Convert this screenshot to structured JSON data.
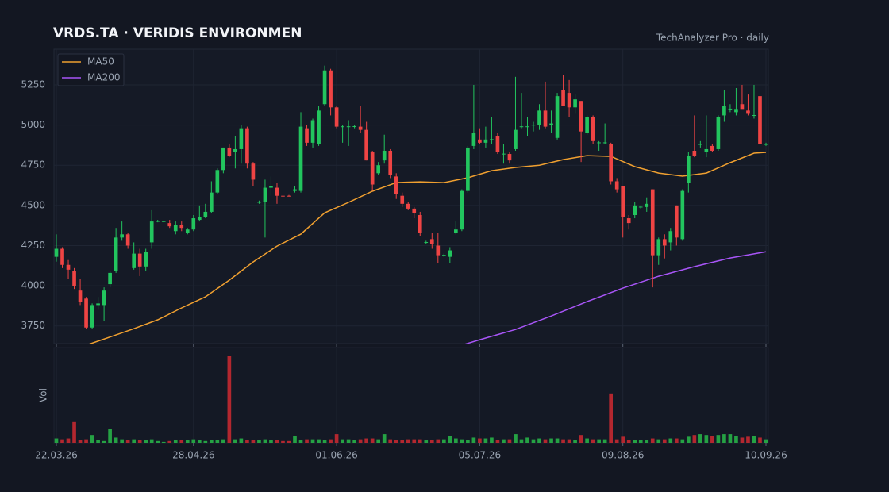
{
  "chart_data": {
    "type": "candlestick",
    "title": "VRDS.TA  ·  VERIDIS ENVIRONMEN",
    "subtitle": "TechAnalyzer Pro · daily",
    "up_color": "#22c55e",
    "down_color": "#ef4444",
    "volume_up_color": "#25a244",
    "volume_down_color": "#b3272f",
    "grid": true,
    "legend": "upper left",
    "xlim": [
      -0.4,
      119.4
    ],
    "xticks": [
      {
        "value": 0,
        "label": "22.03.26"
      },
      {
        "value": 23,
        "label": "28.04.26"
      },
      {
        "value": 47,
        "label": "01.06.26"
      },
      {
        "value": 71,
        "label": "05.07.26"
      },
      {
        "value": 95,
        "label": "09.08.26"
      },
      {
        "value": 119,
        "label": "10.09.26"
      }
    ],
    "ylim": [
      3640,
      5472
    ],
    "yticks": [
      3750,
      4000,
      4250,
      4500,
      4750,
      5000,
      5250
    ],
    "candles": [
      [
        4180,
        4320,
        4150,
        4230
      ],
      [
        4230,
        4240,
        4110,
        4130
      ],
      [
        4130,
        4160,
        4040,
        4100
      ],
      [
        4090,
        4110,
        3980,
        4000
      ],
      [
        3970,
        4040,
        3880,
        3900
      ],
      [
        3920,
        3930,
        3730,
        3740
      ],
      [
        3740,
        3890,
        3730,
        3880
      ],
      [
        3880,
        3930,
        3850,
        3890
      ],
      [
        3880,
        3990,
        3780,
        3970
      ],
      [
        4010,
        4090,
        3990,
        4080
      ],
      [
        4090,
        4360,
        4080,
        4300
      ],
      [
        4300,
        4400,
        4280,
        4320
      ],
      [
        4320,
        4330,
        4230,
        4250
      ],
      [
        4110,
        4270,
        4100,
        4200
      ],
      [
        4200,
        4230,
        4060,
        4120
      ],
      [
        4120,
        4230,
        4090,
        4210
      ],
      [
        4270,
        4470,
        4230,
        4400
      ],
      [
        4400,
        4410,
        4395,
        4403
      ],
      [
        4400,
        4405,
        4395,
        4402
      ],
      [
        4390,
        4410,
        4360,
        4370
      ],
      [
        4340,
        4400,
        4320,
        4380
      ],
      [
        4380,
        4400,
        4340,
        4360
      ],
      [
        4330,
        4360,
        4320,
        4350
      ],
      [
        4350,
        4440,
        4340,
        4420
      ],
      [
        4410,
        4500,
        4400,
        4430
      ],
      [
        4430,
        4510,
        4420,
        4460
      ],
      [
        4460,
        4650,
        4450,
        4580
      ],
      [
        4580,
        4730,
        4570,
        4720
      ],
      [
        4720,
        4860,
        4700,
        4860
      ],
      [
        4860,
        4880,
        4800,
        4810
      ],
      [
        4830,
        4930,
        4730,
        4850
      ],
      [
        4850,
        5000,
        4760,
        4980
      ],
      [
        4980,
        4990,
        4730,
        4760
      ],
      [
        4760,
        4770,
        4620,
        4660
      ],
      [
        4520,
        4530,
        4510,
        4522
      ],
      [
        4520,
        4660,
        4300,
        4610
      ],
      [
        4610,
        4680,
        4560,
        4620
      ],
      [
        4610,
        4640,
        4510,
        4560
      ],
      [
        4560,
        4565,
        4555,
        4558
      ],
      [
        4560,
        4565,
        4555,
        4558
      ],
      [
        4590,
        4620,
        4580,
        4600
      ],
      [
        4590,
        5080,
        4580,
        4990
      ],
      [
        4980,
        5000,
        4870,
        4890
      ],
      [
        4890,
        5040,
        4860,
        5030
      ],
      [
        4880,
        5120,
        4870,
        5090
      ],
      [
        5130,
        5370,
        5120,
        5340
      ],
      [
        5340,
        5350,
        5060,
        5110
      ],
      [
        5110,
        5120,
        4980,
        4990
      ],
      [
        4990,
        5000,
        4890,
        4992
      ],
      [
        4990,
        5030,
        4870,
        4992
      ],
      [
        4990,
        5000,
        4980,
        4993
      ],
      [
        4990,
        5120,
        4950,
        4970
      ],
      [
        4970,
        5020,
        4780,
        4780
      ],
      [
        4830,
        4840,
        4590,
        4630
      ],
      [
        4700,
        4770,
        4690,
        4750
      ],
      [
        4780,
        4940,
        4760,
        4840
      ],
      [
        4840,
        4850,
        4670,
        4690
      ],
      [
        4680,
        4700,
        4540,
        4570
      ],
      [
        4560,
        4580,
        4490,
        4510
      ],
      [
        4510,
        4520,
        4470,
        4480
      ],
      [
        4480,
        4490,
        4420,
        4450
      ],
      [
        4440,
        4460,
        4310,
        4330
      ],
      [
        4270,
        4280,
        4260,
        4272
      ],
      [
        4290,
        4330,
        4230,
        4260
      ],
      [
        4250,
        4330,
        4140,
        4190
      ],
      [
        4190,
        4200,
        4180,
        4192
      ],
      [
        4180,
        4240,
        4140,
        4220
      ],
      [
        4330,
        4400,
        4320,
        4350
      ],
      [
        4350,
        4600,
        4340,
        4590
      ],
      [
        4590,
        4870,
        4580,
        4860
      ],
      [
        4870,
        5250,
        4850,
        4950
      ],
      [
        4910,
        4980,
        4880,
        4890
      ],
      [
        4890,
        4990,
        4860,
        4910
      ],
      [
        4910,
        5050,
        4880,
        4912
      ],
      [
        4930,
        4950,
        4820,
        4830
      ],
      [
        4820,
        4880,
        4760,
        4822
      ],
      [
        4820,
        4830,
        4760,
        4780
      ],
      [
        4850,
        5300,
        4840,
        4970
      ],
      [
        4990,
        5200,
        4980,
        4992
      ],
      [
        4990,
        5050,
        4930,
        4992
      ],
      [
        5000,
        5020,
        4960,
        5002
      ],
      [
        5000,
        5130,
        4970,
        5090
      ],
      [
        5090,
        5270,
        4980,
        4990
      ],
      [
        5000,
        5090,
        4950,
        5010
      ],
      [
        4920,
        5200,
        4910,
        5180
      ],
      [
        5220,
        5310,
        5120,
        5120
      ],
      [
        5200,
        5280,
        5050,
        5110
      ],
      [
        5110,
        5190,
        5070,
        5160
      ],
      [
        5150,
        5150,
        4770,
        4960
      ],
      [
        4950,
        5060,
        4940,
        5050
      ],
      [
        5050,
        5060,
        4880,
        4900
      ],
      [
        4890,
        4900,
        4840,
        4892
      ],
      [
        4890,
        5010,
        4880,
        4892
      ],
      [
        4880,
        4890,
        4630,
        4650
      ],
      [
        4650,
        4670,
        4580,
        4600
      ],
      [
        4620,
        4620,
        4300,
        4430
      ],
      [
        4420,
        4440,
        4350,
        4390
      ],
      [
        4440,
        4520,
        4420,
        4500
      ],
      [
        4490,
        4500,
        4480,
        4492
      ],
      [
        4490,
        4550,
        4460,
        4510
      ],
      [
        4600,
        4600,
        3990,
        4190
      ],
      [
        4190,
        4300,
        4130,
        4290
      ],
      [
        4290,
        4320,
        4170,
        4250
      ],
      [
        4270,
        4360,
        4220,
        4340
      ],
      [
        4500,
        4500,
        4250,
        4300
      ],
      [
        4290,
        4600,
        4280,
        4590
      ],
      [
        4640,
        4830,
        4580,
        4810
      ],
      [
        4840,
        5060,
        4800,
        4810
      ],
      [
        4880,
        4900,
        4860,
        4882
      ],
      [
        4830,
        5060,
        4800,
        4850
      ],
      [
        4870,
        4880,
        4830,
        4840
      ],
      [
        4850,
        5060,
        4840,
        5050
      ],
      [
        5060,
        5220,
        5020,
        5120
      ],
      [
        5100,
        5130,
        5080,
        5102
      ],
      [
        5080,
        5230,
        5060,
        5100
      ],
      [
        5130,
        5250,
        5110,
        5100
      ],
      [
        5090,
        5190,
        5060,
        5070
      ],
      [
        5060,
        5250,
        5040,
        5062
      ],
      [
        5180,
        5190,
        4870,
        4880
      ],
      [
        4880,
        4890,
        4870,
        4882
      ]
    ],
    "volume": {
      "label": "Vol",
      "ylim": [
        0,
        110
      ],
      "values": [
        5,
        4,
        5,
        24,
        3,
        4,
        9,
        3,
        2,
        16,
        6,
        4,
        3,
        4,
        3,
        3,
        4,
        2,
        1,
        2,
        3,
        3,
        3,
        4,
        3,
        2,
        3,
        3,
        4,
        100,
        4,
        5,
        3,
        3,
        3,
        4,
        3,
        3,
        2,
        2,
        8,
        3,
        4,
        4,
        4,
        3,
        4,
        10,
        4,
        4,
        3,
        4,
        5,
        5,
        4,
        10,
        4,
        3,
        3,
        4,
        4,
        4,
        3,
        3,
        4,
        4,
        8,
        5,
        4,
        3,
        6,
        5,
        5,
        6,
        3,
        4,
        4,
        10,
        4,
        6,
        4,
        5,
        4,
        5,
        5,
        4,
        4,
        3,
        9,
        5,
        4,
        4,
        4,
        57,
        4,
        7,
        3,
        3,
        3,
        3,
        5,
        4,
        4,
        5,
        5,
        4,
        7,
        9,
        10,
        9,
        8,
        9,
        10,
        10,
        8,
        6,
        7,
        8,
        6,
        4
      ]
    },
    "lines": [
      {
        "name": "MA50",
        "color": "#f0a030",
        "x": [
          5,
          10,
          13,
          17,
          21,
          25,
          29,
          33,
          37,
          41,
          45,
          49,
          53,
          57,
          61,
          65,
          69,
          73,
          77,
          81,
          85,
          89,
          93,
          97,
          101,
          105,
          109,
          113,
          117,
          119
        ],
        "values": [
          3630,
          3694,
          3733,
          3788,
          3862,
          3931,
          4035,
          4148,
          4247,
          4321,
          4454,
          4519,
          4588,
          4642,
          4647,
          4642,
          4672,
          4716,
          4736,
          4750,
          4785,
          4810,
          4805,
          4741,
          4701,
          4682,
          4701,
          4766,
          4825,
          4830
        ]
      },
      {
        "name": "MA200",
        "color": "#a855f7",
        "x": [
          68,
          71,
          77,
          83,
          89,
          95,
          101,
          107,
          113,
          119
        ],
        "values": [
          3630,
          3664,
          3728,
          3812,
          3901,
          3985,
          4059,
          4119,
          4173,
          4212
        ]
      }
    ]
  }
}
